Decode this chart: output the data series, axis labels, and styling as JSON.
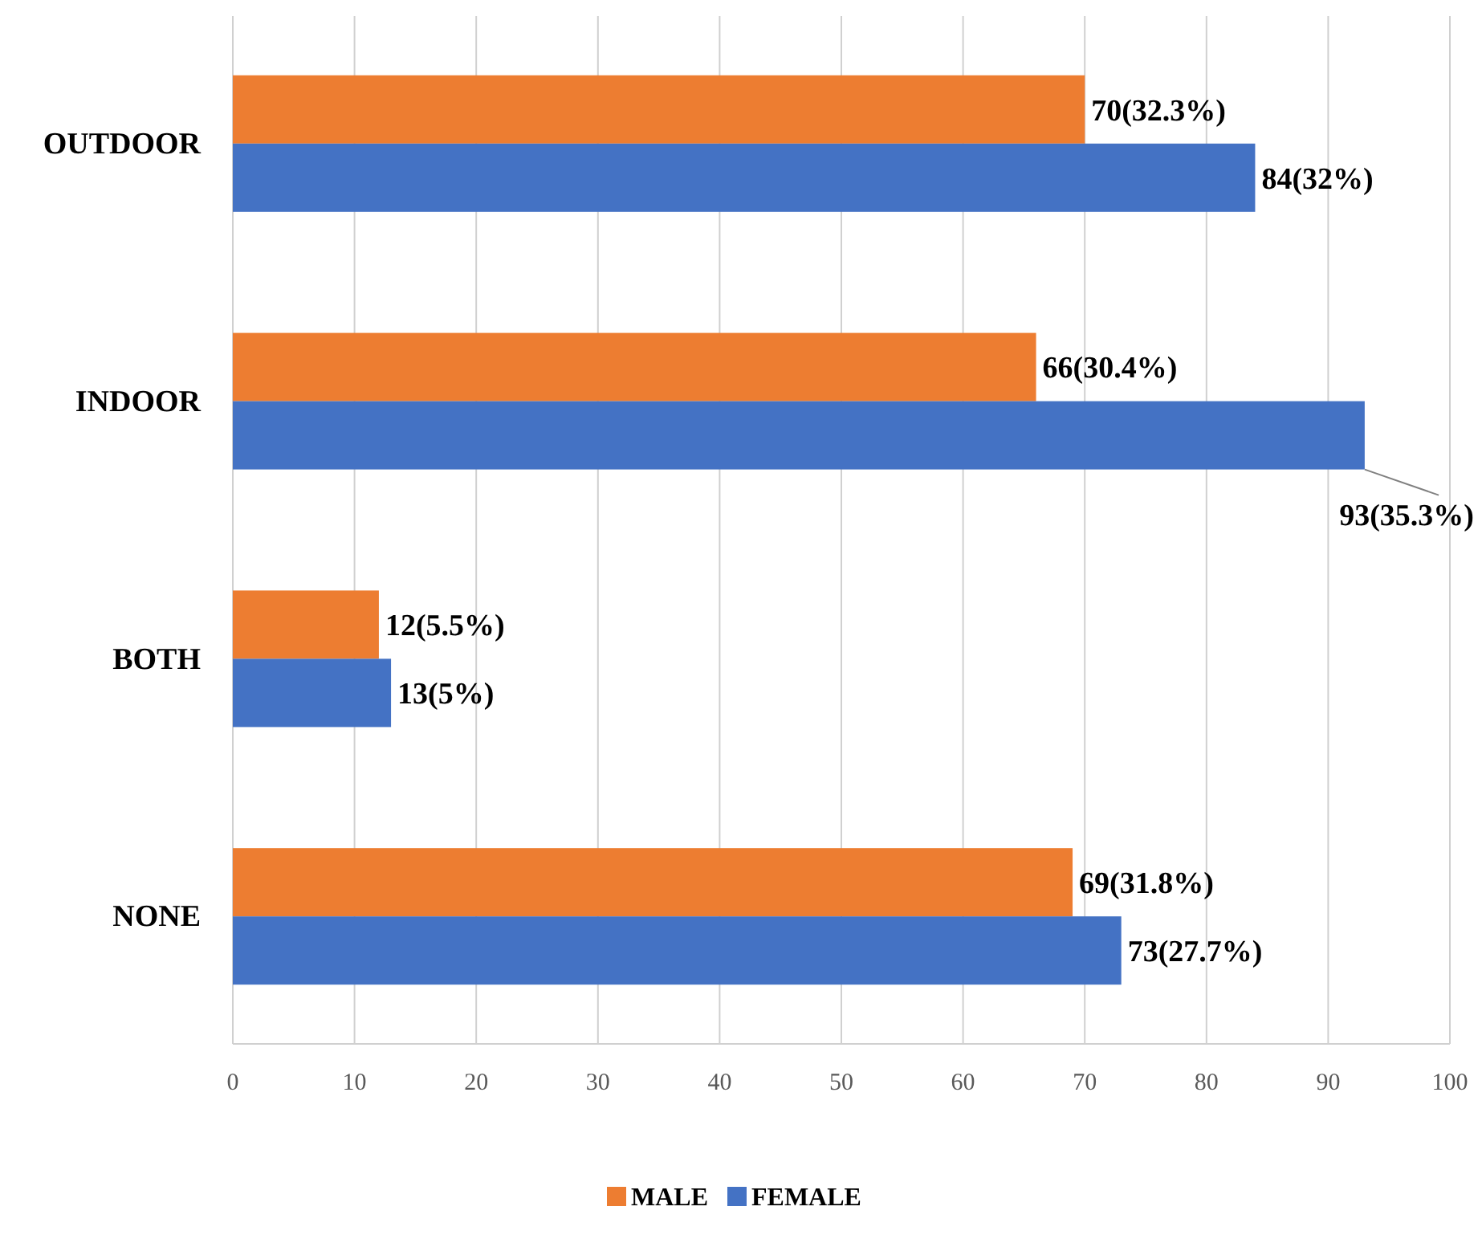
{
  "chart_data": {
    "type": "bar",
    "orientation": "horizontal",
    "categories": [
      "OUTDOOR",
      "INDOOR",
      "BOTH",
      "NONE"
    ],
    "series": [
      {
        "name": "MALE",
        "color": "#ed7d31",
        "values": [
          70,
          66,
          12,
          69
        ],
        "value_labels": [
          "70(32.3%)",
          "66(30.4%)",
          "12(5.5%)",
          "69(31.8%)"
        ]
      },
      {
        "name": "FEMALE",
        "color": "#4472c4",
        "values": [
          84,
          93,
          13,
          73
        ],
        "value_labels": [
          "84(32%)",
          "93(35.3%)",
          "13(5%)",
          "73(27.7%)"
        ]
      }
    ],
    "xlim": [
      0,
      100
    ],
    "xticks": [
      0,
      10,
      20,
      30,
      40,
      50,
      60,
      70,
      80,
      90,
      100
    ],
    "grid": "x",
    "legend": "bottom"
  }
}
